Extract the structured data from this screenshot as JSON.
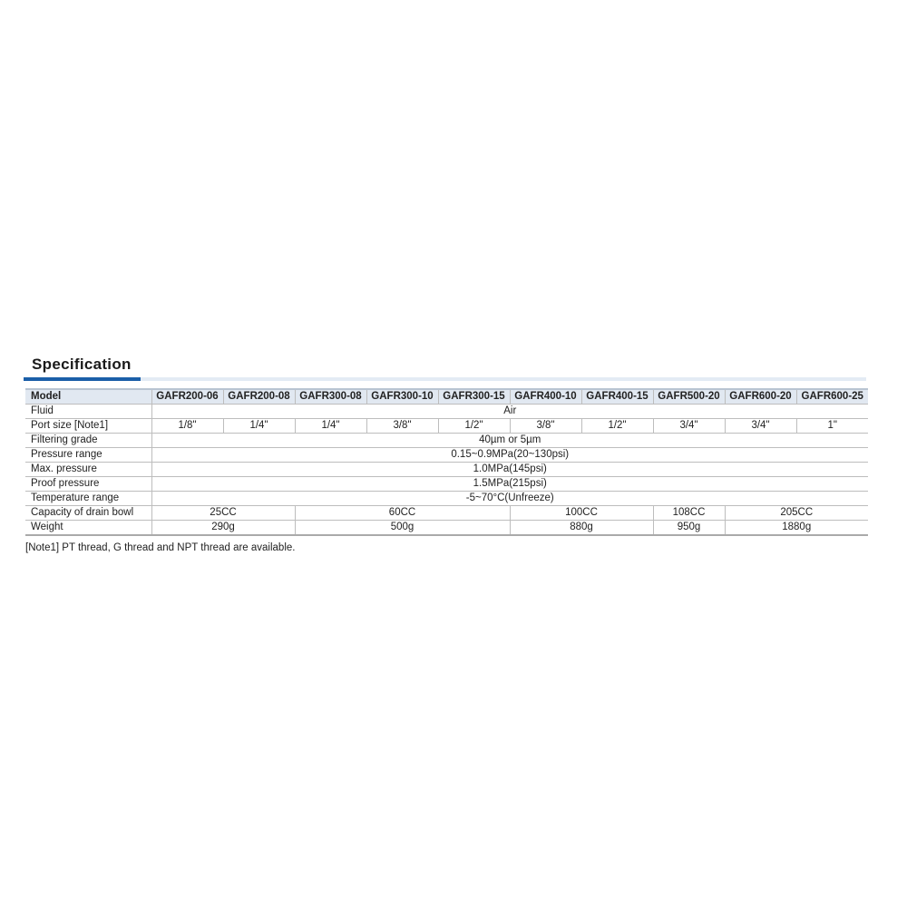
{
  "title": "Specification",
  "table": {
    "header_label": "Model",
    "models": [
      "GAFR200-06",
      "GAFR200-08",
      "GAFR300-08",
      "GAFR300-10",
      "GAFR300-15",
      "GAFR400-10",
      "GAFR400-15",
      "GAFR500-20",
      "GAFR600-20",
      "GAFR600-25"
    ],
    "rows": {
      "fluid": {
        "label": "Fluid",
        "value": "Air"
      },
      "port_size": {
        "label": "Port size  [Note1]",
        "values": [
          "1/8\"",
          "1/4\"",
          "1/4\"",
          "3/8\"",
          "1/2\"",
          "3/8\"",
          "1/2\"",
          "3/4\"",
          "3/4\"",
          "1\""
        ]
      },
      "filtering": {
        "label": "Filtering grade",
        "value": "40µm or 5µm"
      },
      "pressure_range": {
        "label": "Pressure range",
        "value": "0.15~0.9MPa(20~130psi)"
      },
      "max_pressure": {
        "label": "Max. pressure",
        "value": "1.0MPa(145psi)"
      },
      "proof_pressure": {
        "label": "Proof pressure",
        "value": "1.5MPa(215psi)"
      },
      "temperature": {
        "label": "Temperature range",
        "value": "-5~70°C(Unfreeze)"
      },
      "drain_bowl": {
        "label": "Capacity of drain bowl",
        "values": [
          "25CC",
          "60CC",
          "100CC",
          "108CC",
          "205CC"
        ]
      },
      "weight": {
        "label": "Weight",
        "values": [
          "290g",
          "500g",
          "880g",
          "950g",
          "1880g"
        ]
      }
    }
  },
  "note": "[Note1] PT thread, G thread and NPT thread are available.",
  "colors": {
    "accent": "#1b5fa8",
    "header_bg": "#e1e8f1"
  }
}
